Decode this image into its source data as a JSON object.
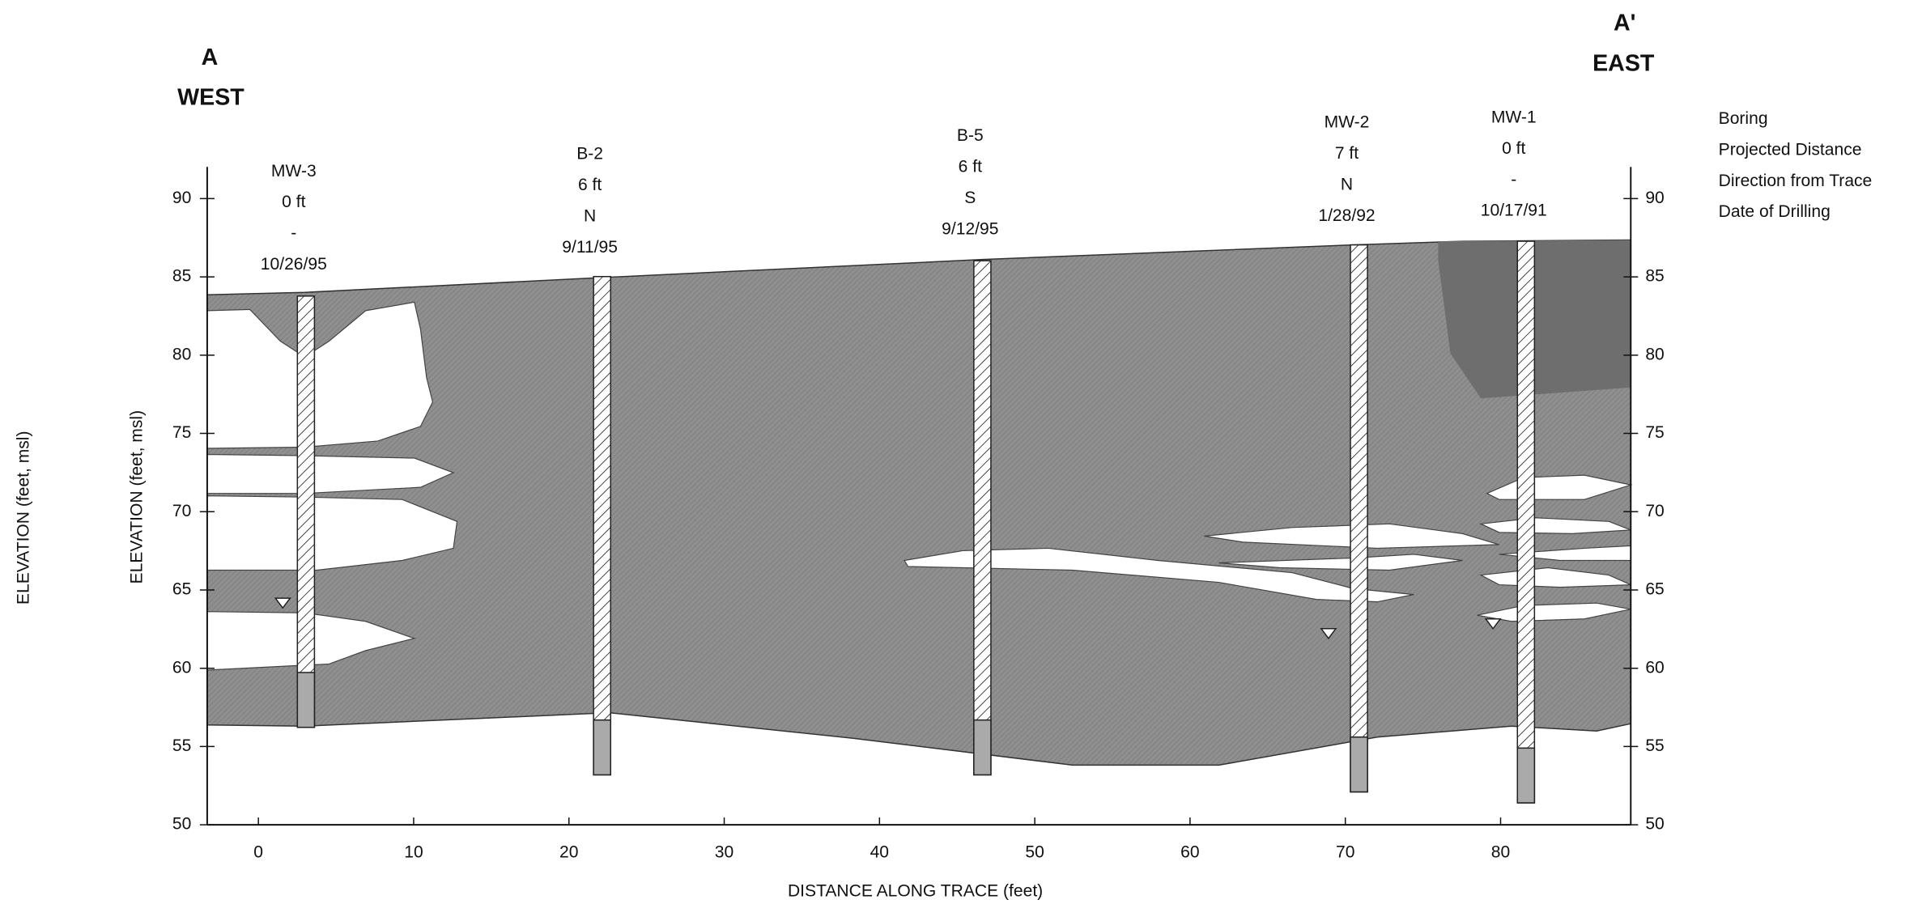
{
  "sections": {
    "left": {
      "label": "A",
      "direction": "WEST"
    },
    "right": {
      "label": "A'",
      "direction": "EAST"
    }
  },
  "legend": [
    "Boring",
    "Projected Distance",
    "Direction from Trace",
    "Date of Drilling"
  ],
  "borings": [
    {
      "name": "MW-3",
      "distance": "0 ft",
      "direction": "-",
      "date": "10/26/95"
    },
    {
      "name": "B-2",
      "distance": "6 ft",
      "direction": "N",
      "date": "9/11/95"
    },
    {
      "name": "B-5",
      "distance": "6 ft",
      "direction": "S",
      "date": "9/12/95"
    },
    {
      "name": "MW-2",
      "distance": "7 ft",
      "direction": "N",
      "date": "1/28/92"
    },
    {
      "name": "MW-1",
      "distance": "0 ft",
      "direction": "-",
      "date": "10/17/91"
    }
  ],
  "axes": {
    "x_label": "DISTANCE ALONG TRACE (feet)",
    "y_label": "ELEVATION (feet, msl)",
    "y_label_outer": "ELEVATION (feet, msl)",
    "x_ticks": [
      0,
      10,
      20,
      30,
      40,
      50,
      60,
      70,
      80
    ],
    "y_ticks": [
      50,
      55,
      60,
      65,
      70,
      75,
      80,
      85,
      90
    ]
  }
}
